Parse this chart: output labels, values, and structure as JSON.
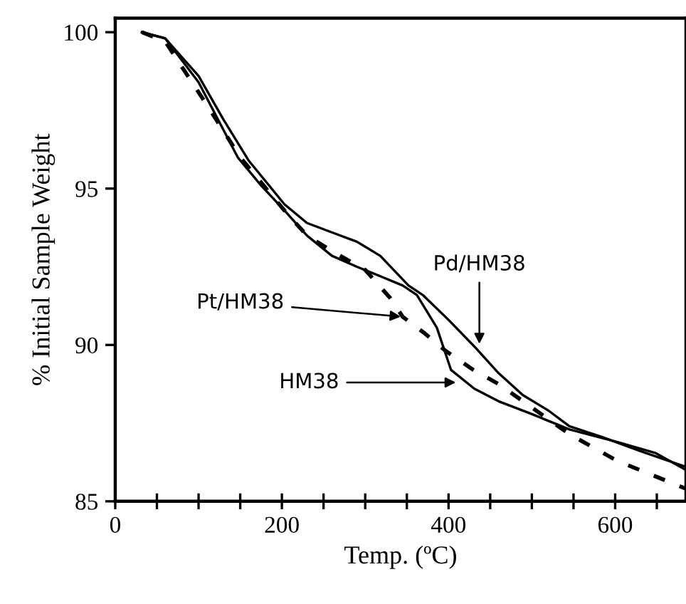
{
  "chart_data": {
    "type": "line",
    "xlabel": "Temp. (ºC)",
    "ylabel": "% Initial Sample Weight",
    "xlim": [
      0,
      685
    ],
    "ylim": [
      85,
      100.45
    ],
    "xticks": [
      0,
      {
        "value": 50,
        "label": null
      },
      {
        "value": 100,
        "label": null
      },
      {
        "value": 150,
        "label": null
      },
      200,
      {
        "value": 250,
        "label": null
      },
      {
        "value": 300,
        "label": null
      },
      {
        "value": 350,
        "label": null
      },
      400,
      {
        "value": 450,
        "label": null
      },
      {
        "value": 500,
        "label": null
      },
      {
        "value": 550,
        "label": null
      },
      600,
      {
        "value": 650,
        "label": null
      }
    ],
    "yticks": [
      85,
      90,
      95,
      100
    ],
    "grid": false,
    "legend": false,
    "marker": "none",
    "series": [
      {
        "color": "#000000",
        "line_style": "solid",
        "x": [
          32,
          60,
          100,
          130,
          160,
          203,
          230,
          260,
          290,
          318,
          352,
          369,
          400,
          431,
          460,
          489,
          520,
          545,
          585,
          631,
          685
        ],
        "values": [
          100,
          99.8,
          98.6,
          97.2,
          95.9,
          94.5,
          93.9,
          93.6,
          93.3,
          92.85,
          91.9,
          91.6,
          90.8,
          89.95,
          89.1,
          88.4,
          87.9,
          87.4,
          87.05,
          86.6,
          86.1
        ]
      },
      {
        "color": "#000000",
        "line_style": "solid",
        "x": [
          32,
          60,
          100,
          147,
          175,
          203,
          230,
          260,
          290,
          318,
          345,
          362,
          386,
          403,
          431,
          460,
          499,
          545,
          602,
          648,
          685
        ],
        "values": [
          100,
          99.8,
          98.4,
          96.0,
          95.1,
          94.3,
          93.5,
          92.85,
          92.5,
          92.2,
          91.9,
          91.6,
          90.55,
          89.2,
          88.6,
          88.2,
          87.8,
          87.3,
          86.9,
          86.55,
          86.0
        ]
      },
      {
        "color": "#000000",
        "line_style": "dashed",
        "x": [
          32,
          60,
          113,
          150,
          203,
          230,
          260,
          300,
          330,
          345,
          370,
          397,
          430,
          460,
          500,
          545,
          602,
          685
        ],
        "values": [
          100,
          99.7,
          97.55,
          96.0,
          94.3,
          93.5,
          93.0,
          92.4,
          91.5,
          90.9,
          90.4,
          89.8,
          89.2,
          88.75,
          88.0,
          87.15,
          86.3,
          85.4
        ]
      }
    ],
    "annotations": [
      {
        "text": "Pt/HM38",
        "x": 345,
        "y": 90.9
      },
      {
        "text": "Pd/HM38",
        "x": 437,
        "y": 89.97
      },
      {
        "text": "HM38",
        "x": 411,
        "y": 88.8
      }
    ]
  }
}
